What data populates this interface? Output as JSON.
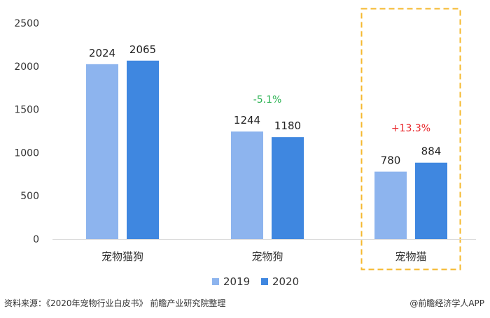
{
  "chart_data": {
    "type": "bar",
    "categories": [
      "宠物猫狗",
      "宠物狗",
      "宠物猫"
    ],
    "series": [
      {
        "name": "2019",
        "values": [
          2024,
          1244,
          780
        ],
        "color": "#8db4ee"
      },
      {
        "name": "2020",
        "values": [
          2065,
          1180,
          884
        ],
        "color": "#3f87e0"
      }
    ],
    "ylim": [
      0,
      2500
    ],
    "yticks": [
      0,
      500,
      1000,
      1500,
      2000,
      2500
    ],
    "grid": false,
    "legend_position": "bottom-center",
    "annotations": [
      {
        "category": "宠物狗",
        "text": "-5.1%",
        "color": "#2db354"
      },
      {
        "category": "宠物猫",
        "text": "+13.3%",
        "color": "#e8262a"
      }
    ],
    "highlight": {
      "category": "宠物猫",
      "style": "dashed-box",
      "color": "#f5b82e"
    }
  },
  "footer": {
    "source": "资料来源：《2020年宠物行业白皮书》 前瞻产业研究院整理",
    "brand": "@前瞻经济学人APP"
  }
}
